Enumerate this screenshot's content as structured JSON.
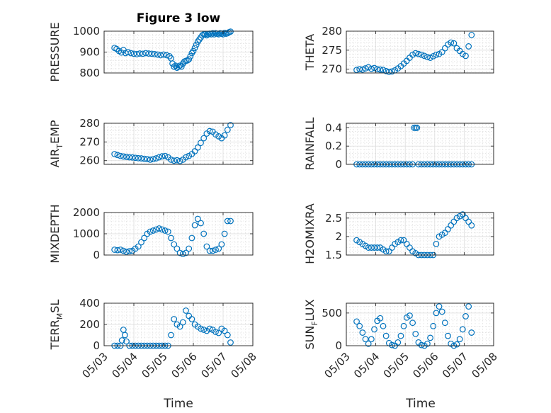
{
  "figure_title": "Figure 3 low",
  "xlabel": "Time",
  "x_tick_labels": [
    "05/03",
    "05/04",
    "05/05",
    "05/06",
    "05/07",
    "05/08"
  ],
  "marker_color": "#0072BD",
  "chart_data": [
    {
      "type": "scatter",
      "ylabel": "PRESSURE",
      "ylim": [
        800,
        1000
      ],
      "yticks": [
        800,
        900,
        1000
      ],
      "x": [
        3.35,
        3.42,
        3.5,
        3.58,
        3.65,
        3.72,
        3.8,
        3.9,
        4.0,
        4.1,
        4.2,
        4.3,
        4.4,
        4.5,
        4.6,
        4.7,
        4.8,
        4.9,
        5.0,
        5.1,
        5.2,
        5.25,
        5.3,
        5.35,
        5.4,
        5.45,
        5.5,
        5.55,
        5.6,
        5.65,
        5.7,
        5.75,
        5.8,
        5.85,
        5.9,
        5.95,
        6.0,
        6.05,
        6.1,
        6.15,
        6.2,
        6.25,
        6.3,
        6.35,
        6.4,
        6.45,
        6.5,
        6.55,
        6.6,
        6.65,
        6.7,
        6.75,
        6.8,
        6.85,
        6.9,
        6.95,
        7.0,
        7.05,
        7.1,
        7.15,
        7.2,
        7.25
      ],
      "y": [
        920,
        915,
        905,
        898,
        910,
        895,
        900,
        895,
        892,
        890,
        893,
        892,
        895,
        893,
        892,
        890,
        888,
        885,
        888,
        885,
        880,
        870,
        845,
        830,
        835,
        825,
        830,
        835,
        830,
        845,
        855,
        858,
        860,
        865,
        880,
        895,
        905,
        920,
        935,
        950,
        960,
        970,
        980,
        985,
        985,
        980,
        985,
        988,
        985,
        990,
        985,
        990,
        988,
        985,
        990,
        988,
        985,
        992,
        988,
        990,
        995,
        998
      ],
      "points": 62
    },
    {
      "type": "scatter",
      "ylabel": "THETA",
      "ylim": [
        269,
        280
      ],
      "yticks": [
        270,
        275,
        280
      ],
      "x": [
        3.35,
        3.45,
        3.55,
        3.65,
        3.75,
        3.85,
        3.95,
        4.05,
        4.15,
        4.25,
        4.35,
        4.45,
        4.55,
        4.65,
        4.75,
        4.85,
        4.95,
        5.05,
        5.15,
        5.25,
        5.35,
        5.45,
        5.55,
        5.65,
        5.75,
        5.85,
        5.95,
        6.05,
        6.15,
        6.25,
        6.35,
        6.45,
        6.55,
        6.65,
        6.75,
        6.85,
        6.95,
        7.05,
        7.15,
        7.25
      ],
      "y": [
        269.8,
        270.0,
        269.9,
        270.2,
        270.5,
        270.1,
        270.3,
        270.0,
        269.9,
        269.8,
        269.5,
        269.3,
        269.4,
        269.7,
        270.2,
        270.8,
        271.5,
        272.2,
        273.0,
        273.8,
        274.2,
        274.0,
        273.8,
        273.5,
        273.2,
        273.0,
        273.4,
        273.8,
        274.0,
        274.5,
        275.5,
        276.5,
        277.0,
        276.8,
        275.5,
        274.8,
        274.0,
        273.5,
        276.0,
        279.0
      ],
      "points": 40
    },
    {
      "type": "scatter",
      "ylabel": "AIR_TEMP",
      "ylim": [
        258,
        280
      ],
      "yticks": [
        260,
        270,
        280
      ],
      "x": [
        3.35,
        3.45,
        3.55,
        3.65,
        3.75,
        3.85,
        3.95,
        4.05,
        4.15,
        4.25,
        4.35,
        4.45,
        4.55,
        4.65,
        4.75,
        4.85,
        4.95,
        5.05,
        5.15,
        5.25,
        5.35,
        5.45,
        5.55,
        5.65,
        5.75,
        5.85,
        5.95,
        6.05,
        6.15,
        6.25,
        6.35,
        6.45,
        6.55,
        6.65,
        6.75,
        6.85,
        6.95,
        7.05,
        7.15,
        7.25
      ],
      "y": [
        263.5,
        263.0,
        262.5,
        262.2,
        262.0,
        261.8,
        261.7,
        261.5,
        261.3,
        261.2,
        261.0,
        260.8,
        260.5,
        260.8,
        261.2,
        261.8,
        262.3,
        262.5,
        261.8,
        260.5,
        260.0,
        260.2,
        259.8,
        260.5,
        261.8,
        262.5,
        263.5,
        265.0,
        267.0,
        269.5,
        272.0,
        274.5,
        275.8,
        275.5,
        274.0,
        273.0,
        272.0,
        273.5,
        276.5,
        279.0
      ],
      "points": 40
    },
    {
      "type": "scatter",
      "ylabel": "RAINFALL",
      "ylim": [
        0,
        0.45
      ],
      "yticks": [
        0,
        0.2,
        0.4
      ],
      "x": [
        3.35,
        3.45,
        3.55,
        3.65,
        3.75,
        3.85,
        3.95,
        4.05,
        4.15,
        4.25,
        4.35,
        4.45,
        4.55,
        4.65,
        4.75,
        4.85,
        4.95,
        5.05,
        5.15,
        5.25,
        5.3,
        5.35,
        5.4,
        5.45,
        5.55,
        5.65,
        5.75,
        5.85,
        5.95,
        6.05,
        6.15,
        6.25,
        6.35,
        6.45,
        6.55,
        6.65,
        6.75,
        6.85,
        6.95,
        7.05,
        7.15,
        7.25
      ],
      "y": [
        0,
        0,
        0,
        0,
        0,
        0,
        0,
        0,
        0,
        0,
        0,
        0,
        0,
        0,
        0,
        0,
        0,
        0,
        0,
        0,
        0.4,
        0.4,
        0.4,
        0,
        0,
        0,
        0,
        0,
        0,
        0,
        0,
        0,
        0,
        0,
        0,
        0,
        0,
        0,
        0,
        0,
        0,
        0
      ],
      "points": 42
    },
    {
      "type": "scatter",
      "ylabel": "MIXDEPTH",
      "ylim": [
        0,
        2000
      ],
      "yticks": [
        0,
        1000,
        2000
      ],
      "x": [
        3.35,
        3.45,
        3.55,
        3.65,
        3.75,
        3.85,
        3.95,
        4.05,
        4.15,
        4.25,
        4.35,
        4.45,
        4.55,
        4.65,
        4.75,
        4.85,
        4.95,
        5.05,
        5.15,
        5.25,
        5.35,
        5.45,
        5.55,
        5.65,
        5.75,
        5.85,
        5.95,
        6.05,
        6.15,
        6.25,
        6.35,
        6.45,
        6.55,
        6.65,
        6.75,
        6.85,
        6.95,
        7.05,
        7.15,
        7.25
      ],
      "y": [
        250,
        230,
        250,
        200,
        150,
        180,
        200,
        300,
        400,
        600,
        800,
        1000,
        1100,
        1150,
        1200,
        1250,
        1200,
        1150,
        1100,
        800,
        500,
        300,
        100,
        50,
        100,
        300,
        800,
        1400,
        1700,
        1500,
        1000,
        400,
        200,
        200,
        250,
        300,
        500,
        1000,
        1600,
        1600
      ],
      "points": 40
    },
    {
      "type": "scatter",
      "ylabel": "H2OMIXRA",
      "ylim": [
        1.5,
        2.65
      ],
      "yticks": [
        1.5,
        2,
        2.5
      ],
      "x": [
        3.35,
        3.45,
        3.55,
        3.65,
        3.75,
        3.85,
        3.95,
        4.05,
        4.15,
        4.25,
        4.35,
        4.45,
        4.55,
        4.65,
        4.75,
        4.85,
        4.95,
        5.05,
        5.15,
        5.25,
        5.35,
        5.45,
        5.55,
        5.65,
        5.75,
        5.85,
        5.95,
        6.05,
        6.15,
        6.25,
        6.35,
        6.45,
        6.55,
        6.65,
        6.75,
        6.85,
        6.95,
        7.05,
        7.15,
        7.25
      ],
      "y": [
        1.9,
        1.85,
        1.8,
        1.75,
        1.7,
        1.7,
        1.7,
        1.7,
        1.7,
        1.65,
        1.6,
        1.6,
        1.7,
        1.8,
        1.85,
        1.9,
        1.9,
        1.8,
        1.7,
        1.6,
        1.55,
        1.5,
        1.5,
        1.5,
        1.5,
        1.5,
        1.5,
        1.8,
        2.0,
        2.05,
        2.1,
        2.2,
        2.3,
        2.4,
        2.5,
        2.55,
        2.6,
        2.5,
        2.4,
        2.3
      ],
      "points": 40
    },
    {
      "type": "scatter",
      "ylabel": "TERR_MSL",
      "ylim": [
        0,
        400
      ],
      "yticks": [
        0,
        200,
        400
      ],
      "x": [
        3.35,
        3.45,
        3.55,
        3.6,
        3.65,
        3.7,
        3.75,
        3.85,
        3.95,
        4.05,
        4.15,
        4.25,
        4.35,
        4.45,
        4.55,
        4.65,
        4.75,
        4.85,
        4.95,
        5.05,
        5.15,
        5.25,
        5.35,
        5.45,
        5.55,
        5.65,
        5.75,
        5.85,
        5.95,
        6.05,
        6.15,
        6.25,
        6.35,
        6.45,
        6.55,
        6.65,
        6.75,
        6.85,
        6.95,
        7.05,
        7.15,
        7.25
      ],
      "y": [
        0,
        0,
        0,
        50,
        150,
        100,
        40,
        0,
        0,
        0,
        0,
        0,
        0,
        0,
        0,
        0,
        0,
        0,
        0,
        0,
        0,
        100,
        250,
        200,
        180,
        220,
        330,
        280,
        250,
        200,
        180,
        160,
        150,
        140,
        160,
        150,
        130,
        120,
        160,
        140,
        100,
        30
      ],
      "points": 42
    },
    {
      "type": "scatter",
      "ylabel": "SUN_FLUX",
      "ylim": [
        0,
        650
      ],
      "yticks": [
        0,
        500
      ],
      "x": [
        3.35,
        3.45,
        3.55,
        3.65,
        3.75,
        3.85,
        3.95,
        4.05,
        4.15,
        4.25,
        4.35,
        4.45,
        4.55,
        4.65,
        4.75,
        4.85,
        4.95,
        5.05,
        5.15,
        5.25,
        5.35,
        5.45,
        5.55,
        5.65,
        5.75,
        5.85,
        5.95,
        6.05,
        6.15,
        6.25,
        6.35,
        6.45,
        6.55,
        6.65,
        6.75,
        6.85,
        6.95,
        7.05,
        7.15,
        7.25
      ],
      "y": [
        370,
        300,
        200,
        100,
        30,
        100,
        250,
        380,
        420,
        300,
        150,
        40,
        10,
        0,
        50,
        150,
        300,
        430,
        460,
        350,
        180,
        50,
        10,
        0,
        30,
        120,
        300,
        500,
        600,
        520,
        350,
        150,
        30,
        0,
        20,
        100,
        250,
        450,
        600,
        200
      ],
      "points": 40
    }
  ]
}
